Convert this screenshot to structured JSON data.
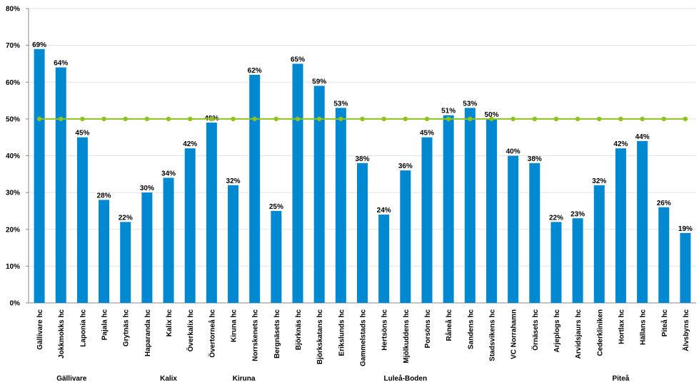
{
  "chart_data": {
    "type": "bar",
    "categories": [
      "Gällivare hc",
      "Jokkmokks hc",
      "Laponia hc",
      "Pajala hc",
      "Grytnäs hc",
      "Haparanda hc",
      "Kalix hc",
      "Överkalix hc",
      "Övertorneå hc",
      "Kiruna hc",
      "Norrskenets hc",
      "Bergnäsets hc",
      "Björknäs hc",
      "Björkskatans hc",
      "Erikslunds hc",
      "Gammelstads hc",
      "Hertsöns hc",
      "Mjölkuddens hc",
      "Porsöns hc",
      "Råneå hc",
      "Sandens hc",
      "Stadsvikens hc",
      "VC Norrahamn",
      "Örnäsets hc",
      "Arjeplogs hc",
      "Arvidsjaurs hc",
      "Cederkliniken",
      "Hortlax hc",
      "Hällans hc",
      "Piteå hc",
      "Älvsbyns hc"
    ],
    "groups": [
      {
        "label": "Gällivare",
        "span": 4
      },
      {
        "label": "Kalix",
        "span": 5
      },
      {
        "label": "Kiruna",
        "span": 2
      },
      {
        "label": "Luleå-Boden",
        "span": 13
      },
      {
        "label": "Piteå",
        "span": 7
      }
    ],
    "series": [
      {
        "type": "bar",
        "color": "#0088d1",
        "values": [
          69,
          64,
          45,
          28,
          22,
          30,
          34,
          42,
          49,
          32,
          62,
          25,
          65,
          59,
          53,
          38,
          24,
          36,
          45,
          51,
          53,
          50,
          40,
          38,
          22,
          23,
          32,
          42,
          44,
          26,
          19
        ],
        "value_labels": [
          "69%",
          "64%",
          "45%",
          "28%",
          "22%",
          "30%",
          "34%",
          "42%",
          "49%",
          "32%",
          "62%",
          "25%",
          "65%",
          "59%",
          "53%",
          "38%",
          "24%",
          "36%",
          "45%",
          "51%",
          "53%",
          "50%",
          "40%",
          "38%",
          "22%",
          "23%",
          "32%",
          "42%",
          "44%",
          "26%",
          "19%"
        ]
      },
      {
        "type": "line",
        "color": "#8dc21f",
        "values": [
          50,
          50,
          50,
          50,
          50,
          50,
          50,
          50,
          50,
          50,
          50,
          50,
          50,
          50,
          50,
          50,
          50,
          50,
          50,
          50,
          50,
          50,
          50,
          50,
          50,
          50,
          50,
          50,
          50,
          50,
          50
        ]
      }
    ],
    "ylim": [
      0,
      80
    ],
    "yticks": [
      {
        "value": 0,
        "label": "0%"
      },
      {
        "value": 10,
        "label": "10%"
      },
      {
        "value": 20,
        "label": "20%"
      },
      {
        "value": 30,
        "label": "30%"
      },
      {
        "value": 40,
        "label": "40%"
      },
      {
        "value": 50,
        "label": "50%"
      },
      {
        "value": 60,
        "label": "60%"
      },
      {
        "value": 70,
        "label": "70%"
      },
      {
        "value": 80,
        "label": "80%"
      }
    ],
    "grid": true
  }
}
